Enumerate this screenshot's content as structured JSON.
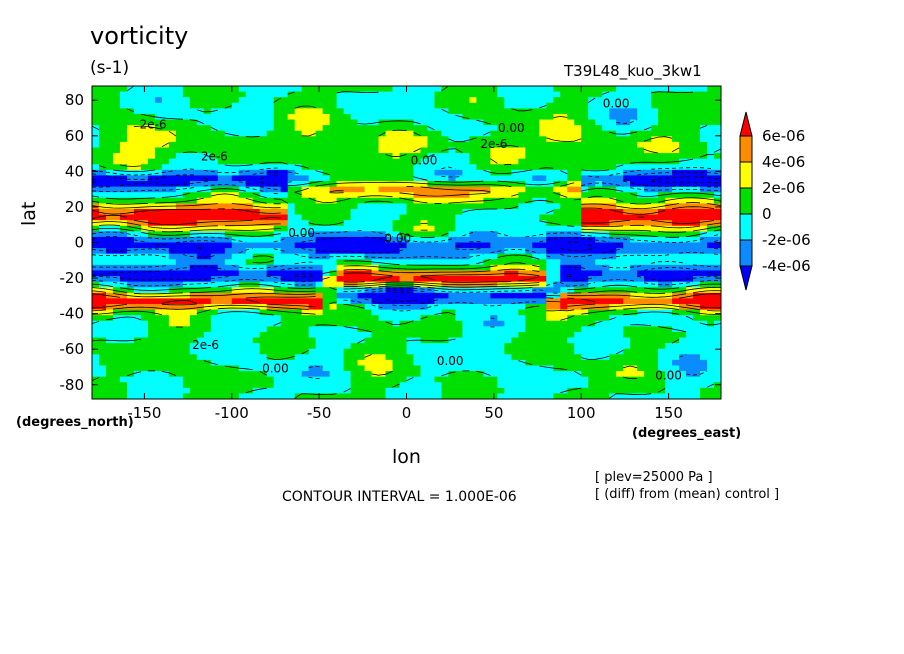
{
  "chart_data": {
    "type": "heatmap",
    "title": "vorticity",
    "units": "(s-1)",
    "run_name": "T39L48_kuo_3kw1",
    "xlabel": "lon",
    "ylabel": "lat",
    "x_units": "(degrees_east)",
    "y_units": "(degrees_north)",
    "xlim": [
      -180,
      180
    ],
    "ylim": [
      -88,
      88
    ],
    "x_ticks": [
      -150,
      -100,
      -50,
      0,
      50,
      100,
      150
    ],
    "y_ticks": [
      80,
      60,
      40,
      20,
      0,
      -20,
      -40,
      -60,
      -80
    ],
    "contour_interval_text": "CONTOUR INTERVAL = 1.000E-06",
    "notes": [
      "[ plev=25000 Pa ]",
      "[ (diff) from (mean) control ]"
    ],
    "colorbar": {
      "labels": [
        "6e-06",
        "4e-06",
        "2e-06",
        "0",
        "-2e-06",
        "-4e-06"
      ],
      "colors": [
        "#ff0000",
        "#ff8c00",
        "#ffff00",
        "#00e000",
        "#00ffff",
        "#0a8cff",
        "#0000ff"
      ]
    },
    "contour_labels": [
      {
        "text": "0.00",
        "lon": 120,
        "lat": 76
      },
      {
        "text": "0.00",
        "lon": 60,
        "lat": 62
      },
      {
        "text": "2e-6",
        "lon": -145,
        "lat": 64
      },
      {
        "text": "2e-6",
        "lon": 50,
        "lat": 53
      },
      {
        "text": "2e-6",
        "lon": -110,
        "lat": 46
      },
      {
        "text": "0.00",
        "lon": 10,
        "lat": 44
      },
      {
        "text": "0.00",
        "lon": -60,
        "lat": 3
      },
      {
        "text": "0.00",
        "lon": -5,
        "lat": 0
      },
      {
        "text": "0.00",
        "lon": 25,
        "lat": -69
      },
      {
        "text": "0.00",
        "lon": -75,
        "lat": -73
      },
      {
        "text": "0.00",
        "lon": 150,
        "lat": -77
      },
      {
        "text": "2e-6",
        "lon": -115,
        "lat": -60
      }
    ],
    "field_bands": [
      {
        "name": "north-mid",
        "lat": 55,
        "amp": 1.5,
        "width": 10
      },
      {
        "name": "north-jet-neg",
        "lat": 35,
        "amp": -5.5,
        "width": 5
      },
      {
        "name": "north-pos",
        "lat": 15,
        "amp": 7.5,
        "width": 7
      },
      {
        "name": "eq-neg",
        "lat": -2,
        "amp": -4.5,
        "width": 6
      },
      {
        "name": "south-pos",
        "lat": -33,
        "amp": 7.0,
        "width": 5
      },
      {
        "name": "south-neg",
        "lat": -18,
        "amp": -5.0,
        "width": 5
      }
    ]
  }
}
